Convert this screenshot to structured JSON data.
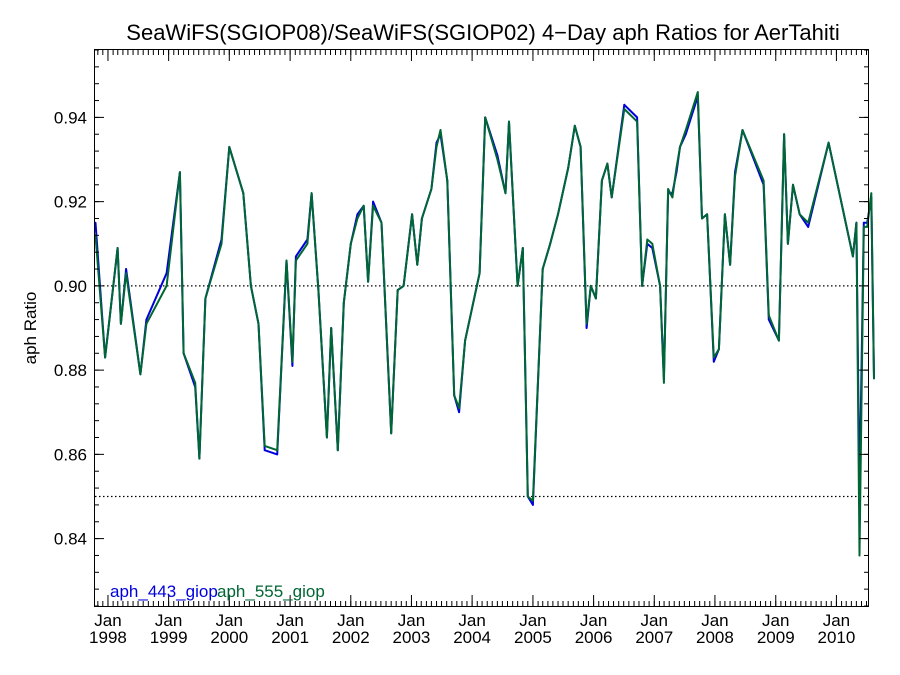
{
  "chart_data": {
    "type": "line",
    "title": "SeaWiFS(SGIOP08)/SeaWiFS(SGIOP02) 4−Day aph Ratios for AerTahiti",
    "xlabel": "",
    "ylabel": "aph Ratio",
    "xlim": [
      "1997-10-15",
      "2010-07-10"
    ],
    "ylim": [
      0.824,
      0.956
    ],
    "y_ticks": [
      0.84,
      0.86,
      0.88,
      0.9,
      0.92,
      0.94
    ],
    "y_tick_labels": [
      "0.84",
      "0.86",
      "0.88",
      "0.90",
      "0.92",
      "0.94"
    ],
    "x_ticks": [
      {
        "date": "1998-01-01",
        "month": "Jan",
        "year": "1998"
      },
      {
        "date": "1999-01-01",
        "month": "Jan",
        "year": "1999"
      },
      {
        "date": "2000-01-01",
        "month": "Jan",
        "year": "2000"
      },
      {
        "date": "2001-01-01",
        "month": "Jan",
        "year": "2001"
      },
      {
        "date": "2002-01-01",
        "month": "Jan",
        "year": "2002"
      },
      {
        "date": "2003-01-01",
        "month": "Jan",
        "year": "2003"
      },
      {
        "date": "2004-01-01",
        "month": "Jan",
        "year": "2004"
      },
      {
        "date": "2005-01-01",
        "month": "Jan",
        "year": "2005"
      },
      {
        "date": "2006-01-01",
        "month": "Jan",
        "year": "2006"
      },
      {
        "date": "2007-01-01",
        "month": "Jan",
        "year": "2007"
      },
      {
        "date": "2008-01-01",
        "month": "Jan",
        "year": "2008"
      },
      {
        "date": "2009-01-01",
        "month": "Jan",
        "year": "2009"
      },
      {
        "date": "2010-01-01",
        "month": "Jan",
        "year": "2010"
      }
    ],
    "reference_lines": [
      0.9,
      0.85
    ],
    "grid": false,
    "legend_position": "bottom-left",
    "series": [
      {
        "name": "aph_443_giop",
        "color": "#0000dd",
        "points": [
          [
            "1997-10-18",
            0.915
          ],
          [
            "1997-12-15",
            0.883
          ],
          [
            "1998-02-28",
            0.909
          ],
          [
            "1998-03-20",
            0.891
          ],
          [
            "1998-04-20",
            0.904
          ],
          [
            "1998-07-15",
            0.879
          ],
          [
            "1998-08-20",
            0.892
          ],
          [
            "1998-12-20",
            0.903
          ],
          [
            "1999-03-10",
            0.927
          ],
          [
            "1999-04-01",
            0.884
          ],
          [
            "1999-06-10",
            0.876
          ],
          [
            "1999-07-05",
            0.859
          ],
          [
            "1999-08-10",
            0.897
          ],
          [
            "1999-11-15",
            0.911
          ],
          [
            "2000-01-01",
            0.933
          ],
          [
            "2000-03-25",
            0.922
          ],
          [
            "2000-05-10",
            0.9
          ],
          [
            "2000-06-25",
            0.891
          ],
          [
            "2000-08-01",
            0.861
          ],
          [
            "2000-10-15",
            0.86
          ],
          [
            "2000-12-10",
            0.906
          ],
          [
            "2001-01-15",
            0.881
          ],
          [
            "2001-02-05",
            0.907
          ],
          [
            "2001-04-15",
            0.911
          ],
          [
            "2001-05-10",
            0.922
          ],
          [
            "2001-06-20",
            0.899
          ],
          [
            "2001-08-10",
            0.864
          ],
          [
            "2001-09-05",
            0.89
          ],
          [
            "2001-10-15",
            0.861
          ],
          [
            "2001-11-20",
            0.896
          ],
          [
            "2002-01-01",
            0.91
          ],
          [
            "2002-02-10",
            0.917
          ],
          [
            "2002-03-20",
            0.919
          ],
          [
            "2002-04-15",
            0.901
          ],
          [
            "2002-05-15",
            0.92
          ],
          [
            "2002-07-05",
            0.915
          ],
          [
            "2002-09-01",
            0.865
          ],
          [
            "2002-10-10",
            0.899
          ],
          [
            "2002-11-15",
            0.9
          ],
          [
            "2003-01-05",
            0.917
          ],
          [
            "2003-02-05",
            0.905
          ],
          [
            "2003-03-05",
            0.916
          ],
          [
            "2003-05-01",
            0.923
          ],
          [
            "2003-06-01",
            0.934
          ],
          [
            "2003-06-25",
            0.936
          ],
          [
            "2003-08-05",
            0.925
          ],
          [
            "2003-09-15",
            0.874
          ],
          [
            "2003-10-15",
            0.87
          ],
          [
            "2003-11-20",
            0.887
          ],
          [
            "2004-02-15",
            0.903
          ],
          [
            "2004-03-20",
            0.94
          ],
          [
            "2004-06-01",
            0.931
          ],
          [
            "2004-07-20",
            0.922
          ],
          [
            "2004-08-10",
            0.939
          ],
          [
            "2004-10-01",
            0.9
          ],
          [
            "2004-11-01",
            0.909
          ],
          [
            "2004-12-01",
            0.85
          ],
          [
            "2005-01-01",
            0.848
          ],
          [
            "2005-03-01",
            0.904
          ],
          [
            "2005-04-15",
            0.91
          ],
          [
            "2005-06-01",
            0.917
          ],
          [
            "2005-08-01",
            0.928
          ],
          [
            "2005-09-10",
            0.938
          ],
          [
            "2005-10-15",
            0.933
          ],
          [
            "2005-11-20",
            0.89
          ],
          [
            "2005-12-15",
            0.9
          ],
          [
            "2006-01-15",
            0.897
          ],
          [
            "2006-02-20",
            0.925
          ],
          [
            "2006-03-25",
            0.929
          ],
          [
            "2006-04-20",
            0.921
          ],
          [
            "2006-07-05",
            0.943
          ],
          [
            "2006-09-20",
            0.94
          ],
          [
            "2006-10-20",
            0.9
          ],
          [
            "2006-11-20",
            0.91
          ],
          [
            "2006-12-20",
            0.909
          ],
          [
            "2007-02-05",
            0.9
          ],
          [
            "2007-02-28",
            0.878
          ],
          [
            "2007-03-25",
            0.922
          ],
          [
            "2007-04-20",
            0.922
          ],
          [
            "2007-05-15",
            0.927
          ],
          [
            "2007-06-05",
            0.933
          ],
          [
            "2007-07-10",
            0.936
          ],
          [
            "2007-09-20",
            0.945
          ],
          [
            "2007-10-15",
            0.916
          ],
          [
            "2007-11-15",
            0.917
          ],
          [
            "2007-12-25",
            0.882
          ],
          [
            "2008-01-25",
            0.885
          ],
          [
            "2008-03-01",
            0.917
          ],
          [
            "2008-04-01",
            0.905
          ],
          [
            "2008-05-01",
            0.927
          ],
          [
            "2008-06-15",
            0.937
          ],
          [
            "2008-10-20",
            0.924
          ],
          [
            "2008-11-20",
            0.892
          ],
          [
            "2009-01-20",
            0.887
          ],
          [
            "2009-02-20",
            0.936
          ],
          [
            "2009-03-15",
            0.91
          ],
          [
            "2009-04-15",
            0.924
          ],
          [
            "2009-05-25",
            0.917
          ],
          [
            "2009-07-15",
            0.914
          ],
          [
            "2009-11-15",
            0.934
          ],
          [
            "2010-04-10",
            0.907
          ],
          [
            "2010-05-01",
            0.915
          ],
          [
            "2010-05-20",
            0.85
          ],
          [
            "2010-06-15",
            0.915
          ],
          [
            "2010-07-05",
            0.915
          ],
          [
            "2010-07-30",
            0.921
          ],
          [
            "2010-08-15",
            0.878
          ]
        ]
      },
      {
        "name": "aph_555_giop",
        "color": "#006633",
        "points": [
          [
            "1997-10-18",
            0.912
          ],
          [
            "1997-12-15",
            0.883
          ],
          [
            "1998-02-28",
            0.909
          ],
          [
            "1998-03-20",
            0.891
          ],
          [
            "1998-04-20",
            0.903
          ],
          [
            "1998-07-15",
            0.879
          ],
          [
            "1998-08-20",
            0.891
          ],
          [
            "1998-12-20",
            0.9
          ],
          [
            "1999-03-10",
            0.927
          ],
          [
            "1999-04-01",
            0.884
          ],
          [
            "1999-06-10",
            0.877
          ],
          [
            "1999-07-05",
            0.859
          ],
          [
            "1999-08-10",
            0.897
          ],
          [
            "1999-11-15",
            0.91
          ],
          [
            "2000-01-01",
            0.933
          ],
          [
            "2000-03-25",
            0.922
          ],
          [
            "2000-05-10",
            0.9
          ],
          [
            "2000-06-25",
            0.891
          ],
          [
            "2000-08-01",
            0.862
          ],
          [
            "2000-10-15",
            0.861
          ],
          [
            "2000-12-10",
            0.906
          ],
          [
            "2001-01-15",
            0.882
          ],
          [
            "2001-02-05",
            0.906
          ],
          [
            "2001-04-15",
            0.91
          ],
          [
            "2001-05-10",
            0.922
          ],
          [
            "2001-06-20",
            0.899
          ],
          [
            "2001-08-10",
            0.864
          ],
          [
            "2001-09-05",
            0.89
          ],
          [
            "2001-10-15",
            0.861
          ],
          [
            "2001-11-20",
            0.896
          ],
          [
            "2002-01-01",
            0.91
          ],
          [
            "2002-02-10",
            0.916
          ],
          [
            "2002-03-20",
            0.919
          ],
          [
            "2002-04-15",
            0.901
          ],
          [
            "2002-05-15",
            0.919
          ],
          [
            "2002-07-05",
            0.915
          ],
          [
            "2002-09-01",
            0.865
          ],
          [
            "2002-10-10",
            0.899
          ],
          [
            "2002-11-15",
            0.9
          ],
          [
            "2003-01-05",
            0.917
          ],
          [
            "2003-02-05",
            0.905
          ],
          [
            "2003-03-05",
            0.916
          ],
          [
            "2003-05-01",
            0.923
          ],
          [
            "2003-06-01",
            0.933
          ],
          [
            "2003-06-25",
            0.937
          ],
          [
            "2003-08-05",
            0.925
          ],
          [
            "2003-09-15",
            0.874
          ],
          [
            "2003-10-15",
            0.871
          ],
          [
            "2003-11-20",
            0.887
          ],
          [
            "2004-02-15",
            0.903
          ],
          [
            "2004-03-20",
            0.94
          ],
          [
            "2004-06-01",
            0.93
          ],
          [
            "2004-07-20",
            0.922
          ],
          [
            "2004-08-10",
            0.939
          ],
          [
            "2004-10-01",
            0.9
          ],
          [
            "2004-11-01",
            0.909
          ],
          [
            "2004-12-01",
            0.85
          ],
          [
            "2005-01-01",
            0.849
          ],
          [
            "2005-03-01",
            0.904
          ],
          [
            "2005-04-15",
            0.91
          ],
          [
            "2005-06-01",
            0.917
          ],
          [
            "2005-08-01",
            0.928
          ],
          [
            "2005-09-10",
            0.938
          ],
          [
            "2005-10-15",
            0.933
          ],
          [
            "2005-11-20",
            0.891
          ],
          [
            "2005-12-15",
            0.9
          ],
          [
            "2006-01-15",
            0.897
          ],
          [
            "2006-02-20",
            0.925
          ],
          [
            "2006-03-25",
            0.929
          ],
          [
            "2006-04-20",
            0.921
          ],
          [
            "2006-07-05",
            0.942
          ],
          [
            "2006-09-20",
            0.939
          ],
          [
            "2006-10-20",
            0.9
          ],
          [
            "2006-11-20",
            0.911
          ],
          [
            "2006-12-20",
            0.91
          ],
          [
            "2007-02-05",
            0.9
          ],
          [
            "2007-02-28",
            0.877
          ],
          [
            "2007-03-25",
            0.923
          ],
          [
            "2007-04-20",
            0.921
          ],
          [
            "2007-05-15",
            0.928
          ],
          [
            "2007-06-05",
            0.933
          ],
          [
            "2007-07-10",
            0.937
          ],
          [
            "2007-09-20",
            0.946
          ],
          [
            "2007-10-15",
            0.916
          ],
          [
            "2007-11-15",
            0.917
          ],
          [
            "2007-12-25",
            0.883
          ],
          [
            "2008-01-25",
            0.885
          ],
          [
            "2008-03-01",
            0.917
          ],
          [
            "2008-04-01",
            0.905
          ],
          [
            "2008-05-01",
            0.926
          ],
          [
            "2008-06-15",
            0.937
          ],
          [
            "2008-10-20",
            0.925
          ],
          [
            "2008-11-20",
            0.893
          ],
          [
            "2009-01-20",
            0.887
          ],
          [
            "2009-02-20",
            0.936
          ],
          [
            "2009-03-15",
            0.91
          ],
          [
            "2009-04-15",
            0.924
          ],
          [
            "2009-05-25",
            0.917
          ],
          [
            "2009-07-15",
            0.915
          ],
          [
            "2009-11-15",
            0.934
          ],
          [
            "2010-04-10",
            0.907
          ],
          [
            "2010-05-01",
            0.915
          ],
          [
            "2010-05-20",
            0.836
          ],
          [
            "2010-06-15",
            0.914
          ],
          [
            "2010-07-05",
            0.914
          ],
          [
            "2010-07-30",
            0.922
          ],
          [
            "2010-08-15",
            0.878
          ]
        ]
      }
    ]
  }
}
